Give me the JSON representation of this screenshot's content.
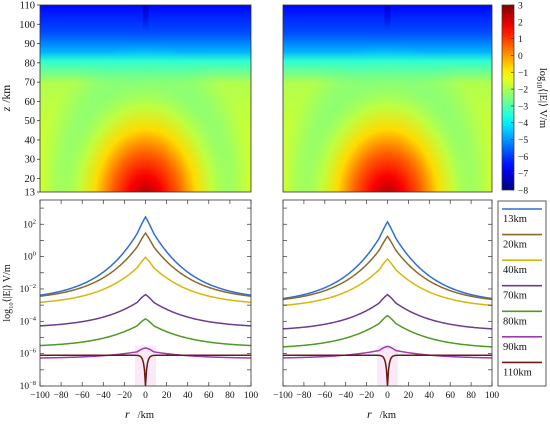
{
  "chart_data": [
    {
      "type": "heatmap",
      "panel": "top-left",
      "ylabel_symbol": "z",
      "ylabel_unit": "/km",
      "y_ticks": [
        13,
        20,
        30,
        40,
        50,
        60,
        70,
        80,
        90,
        100,
        110
      ],
      "ylim": [
        13,
        110
      ],
      "xlim": [
        -100,
        100
      ],
      "colormap": "jet",
      "clim": [
        -8,
        3
      ]
    },
    {
      "type": "heatmap",
      "panel": "top-right",
      "ylim": [
        13,
        110
      ],
      "xlim": [
        -100,
        100
      ],
      "colormap": "jet",
      "clim": [
        -8,
        3
      ]
    },
    {
      "type": "colorbar",
      "ticks": [
        3,
        2,
        1,
        0,
        -1,
        -2,
        -3,
        -4,
        -5,
        -6,
        -7,
        -8
      ],
      "label_text": "log",
      "label_sub": "10",
      "label_rest": "⟨|E|⟩  V/m"
    },
    {
      "type": "line",
      "panel": "bottom-left",
      "xlabel_symbol": "r",
      "xlabel_unit": "/km",
      "ylabel_pre": "log",
      "ylabel_sub": "10",
      "ylabel_rest": "⟨|E|⟩  V/m",
      "x_ticks": [
        -100,
        -80,
        -60,
        -40,
        -20,
        0,
        20,
        40,
        60,
        80,
        100
      ],
      "y_ticks": [
        2,
        0,
        -2,
        -4,
        -6,
        -8
      ],
      "xlim": [
        -100,
        100
      ],
      "ylim_log10": [
        -8,
        3.5
      ],
      "series": [
        {
          "name": "13km",
          "peak": 2.3,
          "tail": -2.7,
          "color": "#2e6fd6"
        },
        {
          "name": "20km",
          "peak": 1.3,
          "tail": -2.7,
          "color": "#8b6a2e"
        },
        {
          "name": "40km",
          "peak": -0.2,
          "tail": -3.0,
          "color": "#d8b70a"
        },
        {
          "name": "70km",
          "peak": -2.5,
          "tail": -4.4,
          "color": "#6a3d8e"
        },
        {
          "name": "80km",
          "peak": -4.0,
          "tail": -5.6,
          "color": "#4e9a22"
        },
        {
          "name": "90km",
          "peak": -5.8,
          "tail": -6.3,
          "color": "#a03cb0"
        },
        {
          "name": "110km",
          "baseline": -6.1,
          "dip": -8.0,
          "color": "#6b1a14"
        }
      ]
    },
    {
      "type": "line",
      "panel": "bottom-right",
      "xlabel_symbol": "r",
      "xlabel_unit": "/km",
      "x_ticks": [
        -100,
        -80,
        -60,
        -40,
        -20,
        0,
        20,
        40,
        60,
        80,
        100
      ],
      "xlim": [
        -100,
        100
      ],
      "ylim_log10": [
        -8,
        3.5
      ],
      "series": [
        {
          "name": "13km",
          "peak": 2.0,
          "tail": -2.9,
          "color": "#2e6fd6"
        },
        {
          "name": "20km",
          "peak": 1.1,
          "tail": -2.9,
          "color": "#8b6a2e"
        },
        {
          "name": "40km",
          "peak": -0.3,
          "tail": -3.2,
          "color": "#d8b70a"
        },
        {
          "name": "70km",
          "peak": -2.5,
          "tail": -4.6,
          "color": "#6a3d8e"
        },
        {
          "name": "80km",
          "peak": -3.8,
          "tail": -5.7,
          "color": "#4e9a22"
        },
        {
          "name": "90km",
          "peak": -5.7,
          "tail": -6.3,
          "color": "#a03cb0"
        },
        {
          "name": "110km",
          "baseline": -6.1,
          "dip": -8.0,
          "color": "#6b1a14"
        }
      ]
    }
  ]
}
